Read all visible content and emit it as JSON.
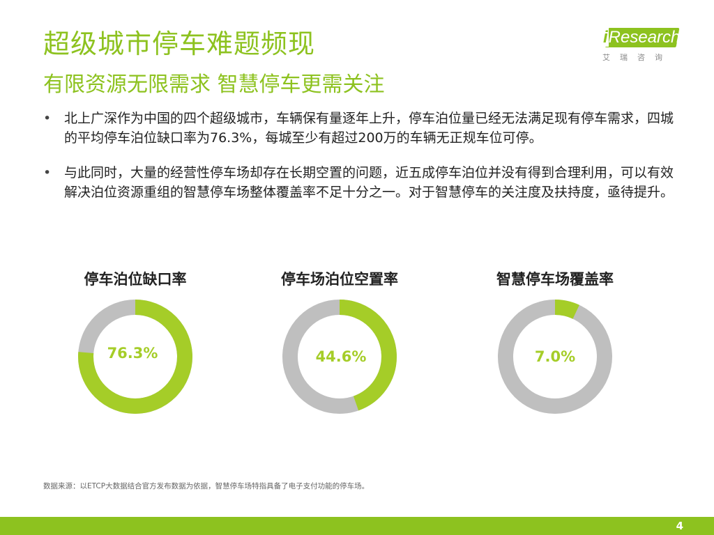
{
  "header": {
    "title": "超级城市停车难题频现",
    "subtitle": "有限资源无限需求 智慧停车更需关注"
  },
  "logo": {
    "brand": "iResearch",
    "brand_i": "i",
    "brand_rest": "Research",
    "sub": "艾瑞咨询"
  },
  "bullets": [
    {
      "text": "北上广深作为中国的四个超级城市，车辆保有量逐年上升，停车泊位量已经无法满足现有停车需求，四城的平均停车泊位缺口率为76.3%，每城至少有超过200万的车辆无正规车位可停。"
    },
    {
      "text": "与此同时，大量的经营性停车场却存在长期空置的问题，近五成停车泊位并没有得到合理利用，可以有效解决泊位资源重组的智慧停车场整体覆盖率不足十分之一。对于智慧停车的关注度及扶持度，亟待提升。"
    }
  ],
  "colors": {
    "accent": "#8dc21f",
    "ring_filled": "#a5cd28",
    "ring_empty": "#bfbfbf"
  },
  "chart_data": [
    {
      "type": "pie",
      "title": "停车泊位缺口率",
      "values": [
        76.3,
        23.7
      ],
      "label": "76.3%"
    },
    {
      "type": "pie",
      "title": "停车场泊位空置率",
      "values": [
        44.6,
        55.4
      ],
      "label": "44.6%"
    },
    {
      "type": "pie",
      "title": "智慧停车场覆盖率",
      "values": [
        7.0,
        93.0
      ],
      "label": "7.0%"
    }
  ],
  "footer": {
    "source": "数据来源：以ETCP大数据结合官方发布数据为依据，智慧停车场特指具备了电子支付功能的停车场。",
    "page_number": "4"
  }
}
